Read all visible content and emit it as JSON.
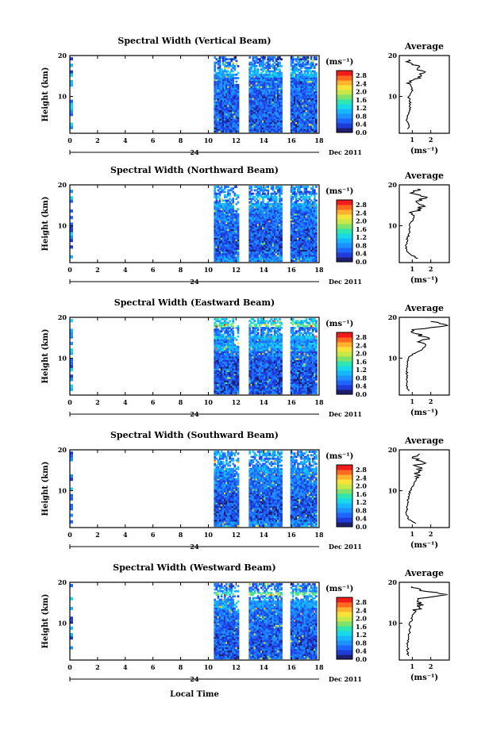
{
  "figure": {
    "x_axis_label": "Local Time",
    "date_label": "Dec 2011",
    "day_label": "24",
    "y_axis_label": "Height (km)",
    "colorbar_unit": "(ms⁻¹)",
    "avg_title": "Average",
    "avg_unit": "(ms⁻¹)"
  },
  "colors": {
    "scale": [
      "#1c1e6e",
      "#1f3cd9",
      "#1f66ff",
      "#1e90ff",
      "#17b7ff",
      "#19d8e8",
      "#2ee6b0",
      "#7fe26a",
      "#c7e846",
      "#f5e23a",
      "#ffb22e",
      "#ff6a1f",
      "#f21b1b"
    ]
  },
  "chart_data": [
    {
      "type": "heatmap",
      "title": "Spectral Width (Vertical Beam)",
      "x_ticks": [
        "0",
        "2",
        "4",
        "6",
        "8",
        "10",
        "12",
        "14",
        "16",
        "18"
      ],
      "xlim": [
        0,
        18
      ],
      "y_ticks": [
        "20",
        "10"
      ],
      "ylim": [
        1,
        20
      ],
      "colorbar": {
        "min": 0.0,
        "max": 3.0,
        "tick_labels": [
          "2.8",
          "2.4",
          "2.0",
          "1.6",
          "1.2",
          "0.8",
          "0.4",
          "0.0"
        ]
      },
      "data_gaps_hours": [
        [
          12.3,
          12.8
        ],
        [
          15.4,
          15.8
        ]
      ],
      "data_coverage_hours": [
        10.4,
        17.8
      ],
      "average_profile": {
        "x_ticks": [
          "1",
          "2"
        ],
        "xlim": [
          0.3,
          3.0
        ],
        "y_ticks": [
          "20",
          "10"
        ],
        "ylim": [
          1,
          20
        ],
        "height_km": [
          2,
          3,
          4,
          5,
          6,
          7,
          8,
          9,
          10,
          11,
          12,
          13,
          14,
          15,
          16,
          17,
          18,
          19
        ],
        "width_ms": [
          0.75,
          0.8,
          0.7,
          0.75,
          0.8,
          0.85,
          0.9,
          0.85,
          0.8,
          0.95,
          1.0,
          0.9,
          1.05,
          1.5,
          1.7,
          1.3,
          1.0,
          0.8
        ]
      }
    },
    {
      "type": "heatmap",
      "title": "Spectral Width (Northward Beam)",
      "x_ticks": [
        "0",
        "2",
        "4",
        "6",
        "8",
        "10",
        "12",
        "14",
        "16",
        "18"
      ],
      "xlim": [
        0,
        18
      ],
      "y_ticks": [
        "20",
        "10"
      ],
      "ylim": [
        1,
        20
      ],
      "colorbar": {
        "min": 0.0,
        "max": 3.0,
        "tick_labels": [
          "2.8",
          "2.4",
          "2.0",
          "1.6",
          "1.2",
          "0.8",
          "0.4",
          "0.0"
        ]
      },
      "data_gaps_hours": [
        [
          12.3,
          12.8
        ],
        [
          15.4,
          15.8
        ]
      ],
      "data_coverage_hours": [
        10.4,
        17.8
      ],
      "average_profile": {
        "x_ticks": [
          "1",
          "2"
        ],
        "xlim": [
          0.3,
          3.0
        ],
        "y_ticks": [
          "20",
          "10"
        ],
        "ylim": [
          1,
          20
        ],
        "height_km": [
          2,
          3,
          4,
          5,
          6,
          7,
          8,
          9,
          10,
          11,
          12,
          13,
          14,
          15,
          16,
          17,
          18,
          19
        ],
        "width_ms": [
          1.3,
          0.9,
          0.7,
          0.65,
          0.7,
          0.75,
          0.8,
          0.85,
          0.85,
          0.95,
          1.1,
          1.0,
          1.3,
          1.6,
          1.2,
          1.8,
          0.9,
          1.3
        ]
      }
    },
    {
      "type": "heatmap",
      "title": "Spectral Width (Eastward Beam)",
      "x_ticks": [
        "0",
        "2",
        "4",
        "6",
        "8",
        "10",
        "12",
        "14",
        "16",
        "18"
      ],
      "xlim": [
        0,
        18
      ],
      "y_ticks": [
        "20",
        "10"
      ],
      "ylim": [
        1,
        20
      ],
      "colorbar": {
        "min": 0.0,
        "max": 3.0,
        "tick_labels": [
          "2.8",
          "2.4",
          "2.0",
          "1.6",
          "1.2",
          "0.8",
          "0.4",
          "0.0"
        ]
      },
      "data_gaps_hours": [
        [
          12.3,
          12.8
        ],
        [
          15.4,
          15.8
        ]
      ],
      "data_coverage_hours": [
        10.4,
        17.8
      ],
      "average_profile": {
        "x_ticks": [
          "1",
          "2"
        ],
        "xlim": [
          0.3,
          3.0
        ],
        "y_ticks": [
          "20",
          "10"
        ],
        "ylim": [
          1,
          20
        ],
        "height_km": [
          2,
          3,
          4,
          5,
          6,
          7,
          8,
          9,
          10,
          11,
          12,
          13,
          14,
          15,
          16,
          17,
          18,
          19
        ],
        "width_ms": [
          0.8,
          0.75,
          0.7,
          0.7,
          0.7,
          0.7,
          0.75,
          0.75,
          0.8,
          1.0,
          1.5,
          1.7,
          1.3,
          1.9,
          1.2,
          1.0,
          2.9,
          2.0
        ]
      }
    },
    {
      "type": "heatmap",
      "title": "Spectral Width (Southward Beam)",
      "x_ticks": [
        "0",
        "2",
        "4",
        "6",
        "8",
        "10",
        "12",
        "14",
        "16",
        "18"
      ],
      "xlim": [
        0,
        18
      ],
      "y_ticks": [
        "20",
        "10"
      ],
      "ylim": [
        1,
        20
      ],
      "colorbar": {
        "min": 0.0,
        "max": 3.0,
        "tick_labels": [
          "2.8",
          "2.4",
          "2.0",
          "1.6",
          "1.2",
          "0.8",
          "0.4",
          "0.0"
        ]
      },
      "data_gaps_hours": [
        [
          12.3,
          12.8
        ],
        [
          15.4,
          15.8
        ]
      ],
      "data_coverage_hours": [
        10.4,
        17.8
      ],
      "average_profile": {
        "x_ticks": [
          "1",
          "2"
        ],
        "xlim": [
          0.3,
          3.0
        ],
        "y_ticks": [
          "20",
          "10"
        ],
        "ylim": [
          1,
          20
        ],
        "height_km": [
          2,
          3,
          4,
          5,
          6,
          7,
          8,
          9,
          10,
          11,
          12,
          13,
          14,
          15,
          16,
          17,
          18,
          19
        ],
        "width_ms": [
          1.2,
          0.8,
          0.7,
          0.7,
          0.7,
          0.75,
          0.8,
          0.85,
          0.9,
          1.0,
          1.1,
          1.2,
          1.3,
          1.5,
          1.2,
          1.6,
          1.0,
          1.4
        ]
      }
    },
    {
      "type": "heatmap",
      "title": "Spectral Width (Westward Beam)",
      "x_ticks": [
        "0",
        "2",
        "4",
        "6",
        "8",
        "10",
        "12",
        "14",
        "16",
        "18"
      ],
      "xlim": [
        0,
        18
      ],
      "y_ticks": [
        "20",
        "10"
      ],
      "ylim": [
        1,
        20
      ],
      "colorbar": {
        "min": 0.0,
        "max": 3.0,
        "tick_labels": [
          "2.8",
          "2.4",
          "2.0",
          "1.6",
          "1.2",
          "0.8",
          "0.4",
          "0.0"
        ]
      },
      "data_gaps_hours": [
        [
          12.3,
          12.8
        ],
        [
          15.4,
          15.8
        ]
      ],
      "data_coverage_hours": [
        10.4,
        17.8
      ],
      "average_profile": {
        "x_ticks": [
          "1",
          "2"
        ],
        "xlim": [
          0.3,
          3.0
        ],
        "y_ticks": [
          "20",
          "10"
        ],
        "ylim": [
          1,
          20
        ],
        "height_km": [
          2,
          3,
          4,
          5,
          6,
          7,
          8,
          9,
          10,
          11,
          12,
          13,
          14,
          15,
          16,
          17,
          18,
          19
        ],
        "width_ms": [
          0.8,
          0.75,
          0.75,
          0.7,
          0.8,
          0.8,
          0.85,
          0.9,
          0.85,
          1.0,
          1.0,
          1.2,
          1.4,
          1.5,
          1.3,
          2.9,
          1.4,
          1.0
        ]
      }
    }
  ]
}
